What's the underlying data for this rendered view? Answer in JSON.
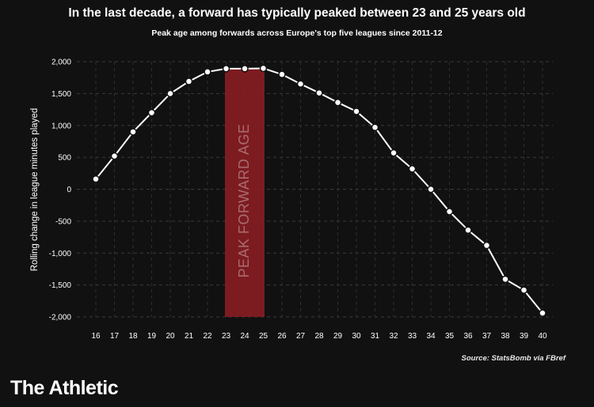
{
  "chart_data": {
    "type": "line",
    "title": "In the last decade, a forward has typically peaked between 23 and 25 years old",
    "subtitle": "Peak age among forwards across Europe's top five leagues since 2011-12",
    "xlabel": "",
    "ylabel": "Rolling change in league minutes played",
    "x": [
      16,
      17,
      18,
      19,
      20,
      21,
      22,
      23,
      24,
      25,
      26,
      27,
      28,
      29,
      30,
      31,
      32,
      33,
      34,
      35,
      36,
      37,
      38,
      39,
      40
    ],
    "values": [
      160,
      520,
      900,
      1200,
      1500,
      1690,
      1840,
      1890,
      1890,
      1895,
      1800,
      1650,
      1510,
      1360,
      1220,
      970,
      570,
      320,
      0,
      -350,
      -640,
      -880,
      -1410,
      -1580,
      -1940
    ],
    "ylim": [
      -2000,
      2000
    ],
    "xlim": [
      16,
      40
    ],
    "yticks": [
      2000,
      1500,
      1000,
      500,
      0,
      -500,
      -1000,
      -1500,
      -2000
    ],
    "ytick_labels": [
      "2,000",
      "1,500",
      "1,000",
      "500",
      "0",
      "-500",
      "-1,000",
      "-1,500",
      "-2,000"
    ],
    "grid": true,
    "highlight": {
      "from": 23,
      "to": 25,
      "label": "PEAK FORWARD AGE",
      "color": "#8b1c22"
    },
    "line_color": "#ffffff",
    "marker_fill": "#ffffff"
  },
  "source": "Source: StatsBomb via FBref",
  "brand": "The Athletic"
}
